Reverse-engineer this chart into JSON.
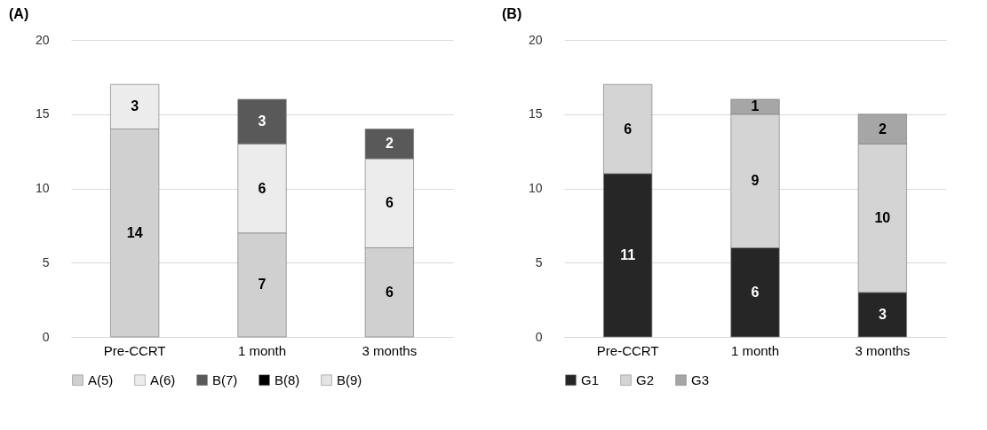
{
  "chart_data": [
    {
      "type": "bar",
      "title": "(A)",
      "stacked": true,
      "categories": [
        "Pre-CCRT",
        "1 month",
        "3 months"
      ],
      "series": [
        {
          "name": "A(5)",
          "color": "#d0d0d0",
          "values": [
            14,
            7,
            6
          ]
        },
        {
          "name": "A(6)",
          "color": "#ececec",
          "values": [
            3,
            6,
            6
          ]
        },
        {
          "name": "B(7)",
          "color": "#595959",
          "values": [
            null,
            3,
            2
          ]
        },
        {
          "name": "B(8)",
          "color": "#000000",
          "values": [
            null,
            null,
            null
          ]
        },
        {
          "name": "B(9)",
          "color": "#e4e4e4",
          "values": [
            null,
            null,
            null
          ]
        }
      ],
      "ylim": [
        0,
        20
      ],
      "yticks": [
        0,
        5,
        10,
        15,
        20
      ],
      "grid": "y",
      "legend": "bottom",
      "data_labels": true
    },
    {
      "type": "bar",
      "title": "(B)",
      "stacked": true,
      "categories": [
        "Pre-CCRT",
        "1 month",
        "3 months"
      ],
      "series": [
        {
          "name": "G1",
          "color": "#262626",
          "values": [
            11,
            6,
            3
          ]
        },
        {
          "name": "G2",
          "color": "#d4d4d4",
          "values": [
            6,
            9,
            10
          ]
        },
        {
          "name": "G3",
          "color": "#a6a6a6",
          "values": [
            null,
            1,
            2
          ]
        }
      ],
      "ylim": [
        0,
        20
      ],
      "yticks": [
        0,
        5,
        10,
        15,
        20
      ],
      "grid": "y",
      "legend": "bottom",
      "data_labels": true
    }
  ]
}
